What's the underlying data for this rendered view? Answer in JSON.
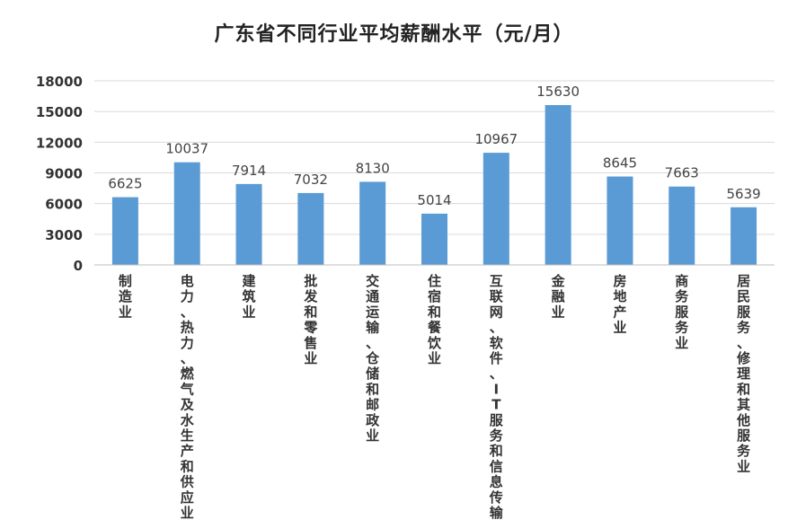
{
  "chart_data": {
    "type": "bar",
    "title": "广东省不同行业平均薪酬水平（元/月）",
    "xlabel": "",
    "ylabel": "",
    "ylim": [
      0,
      18000
    ],
    "yticks": [
      0,
      3000,
      6000,
      9000,
      12000,
      15000,
      18000
    ],
    "grid": true,
    "legend": "none",
    "bar_color": "#5B9BD5",
    "grid_color": "#D9D9D9",
    "categories": [
      "制造业",
      "电力、热力、燃气及水生产和供应业",
      "建筑业",
      "批发和零售业",
      "交通运输、仓储和邮政业",
      "住宿和餐饮业",
      "互联网、软件、IT服务和信息传输业",
      "金融业",
      "房地产业",
      "商务服务业",
      "居民服务、修理和其他服务业"
    ],
    "values": [
      6625,
      10037,
      7914,
      7032,
      8130,
      5014,
      10967,
      15630,
      8645,
      7663,
      5639
    ]
  }
}
